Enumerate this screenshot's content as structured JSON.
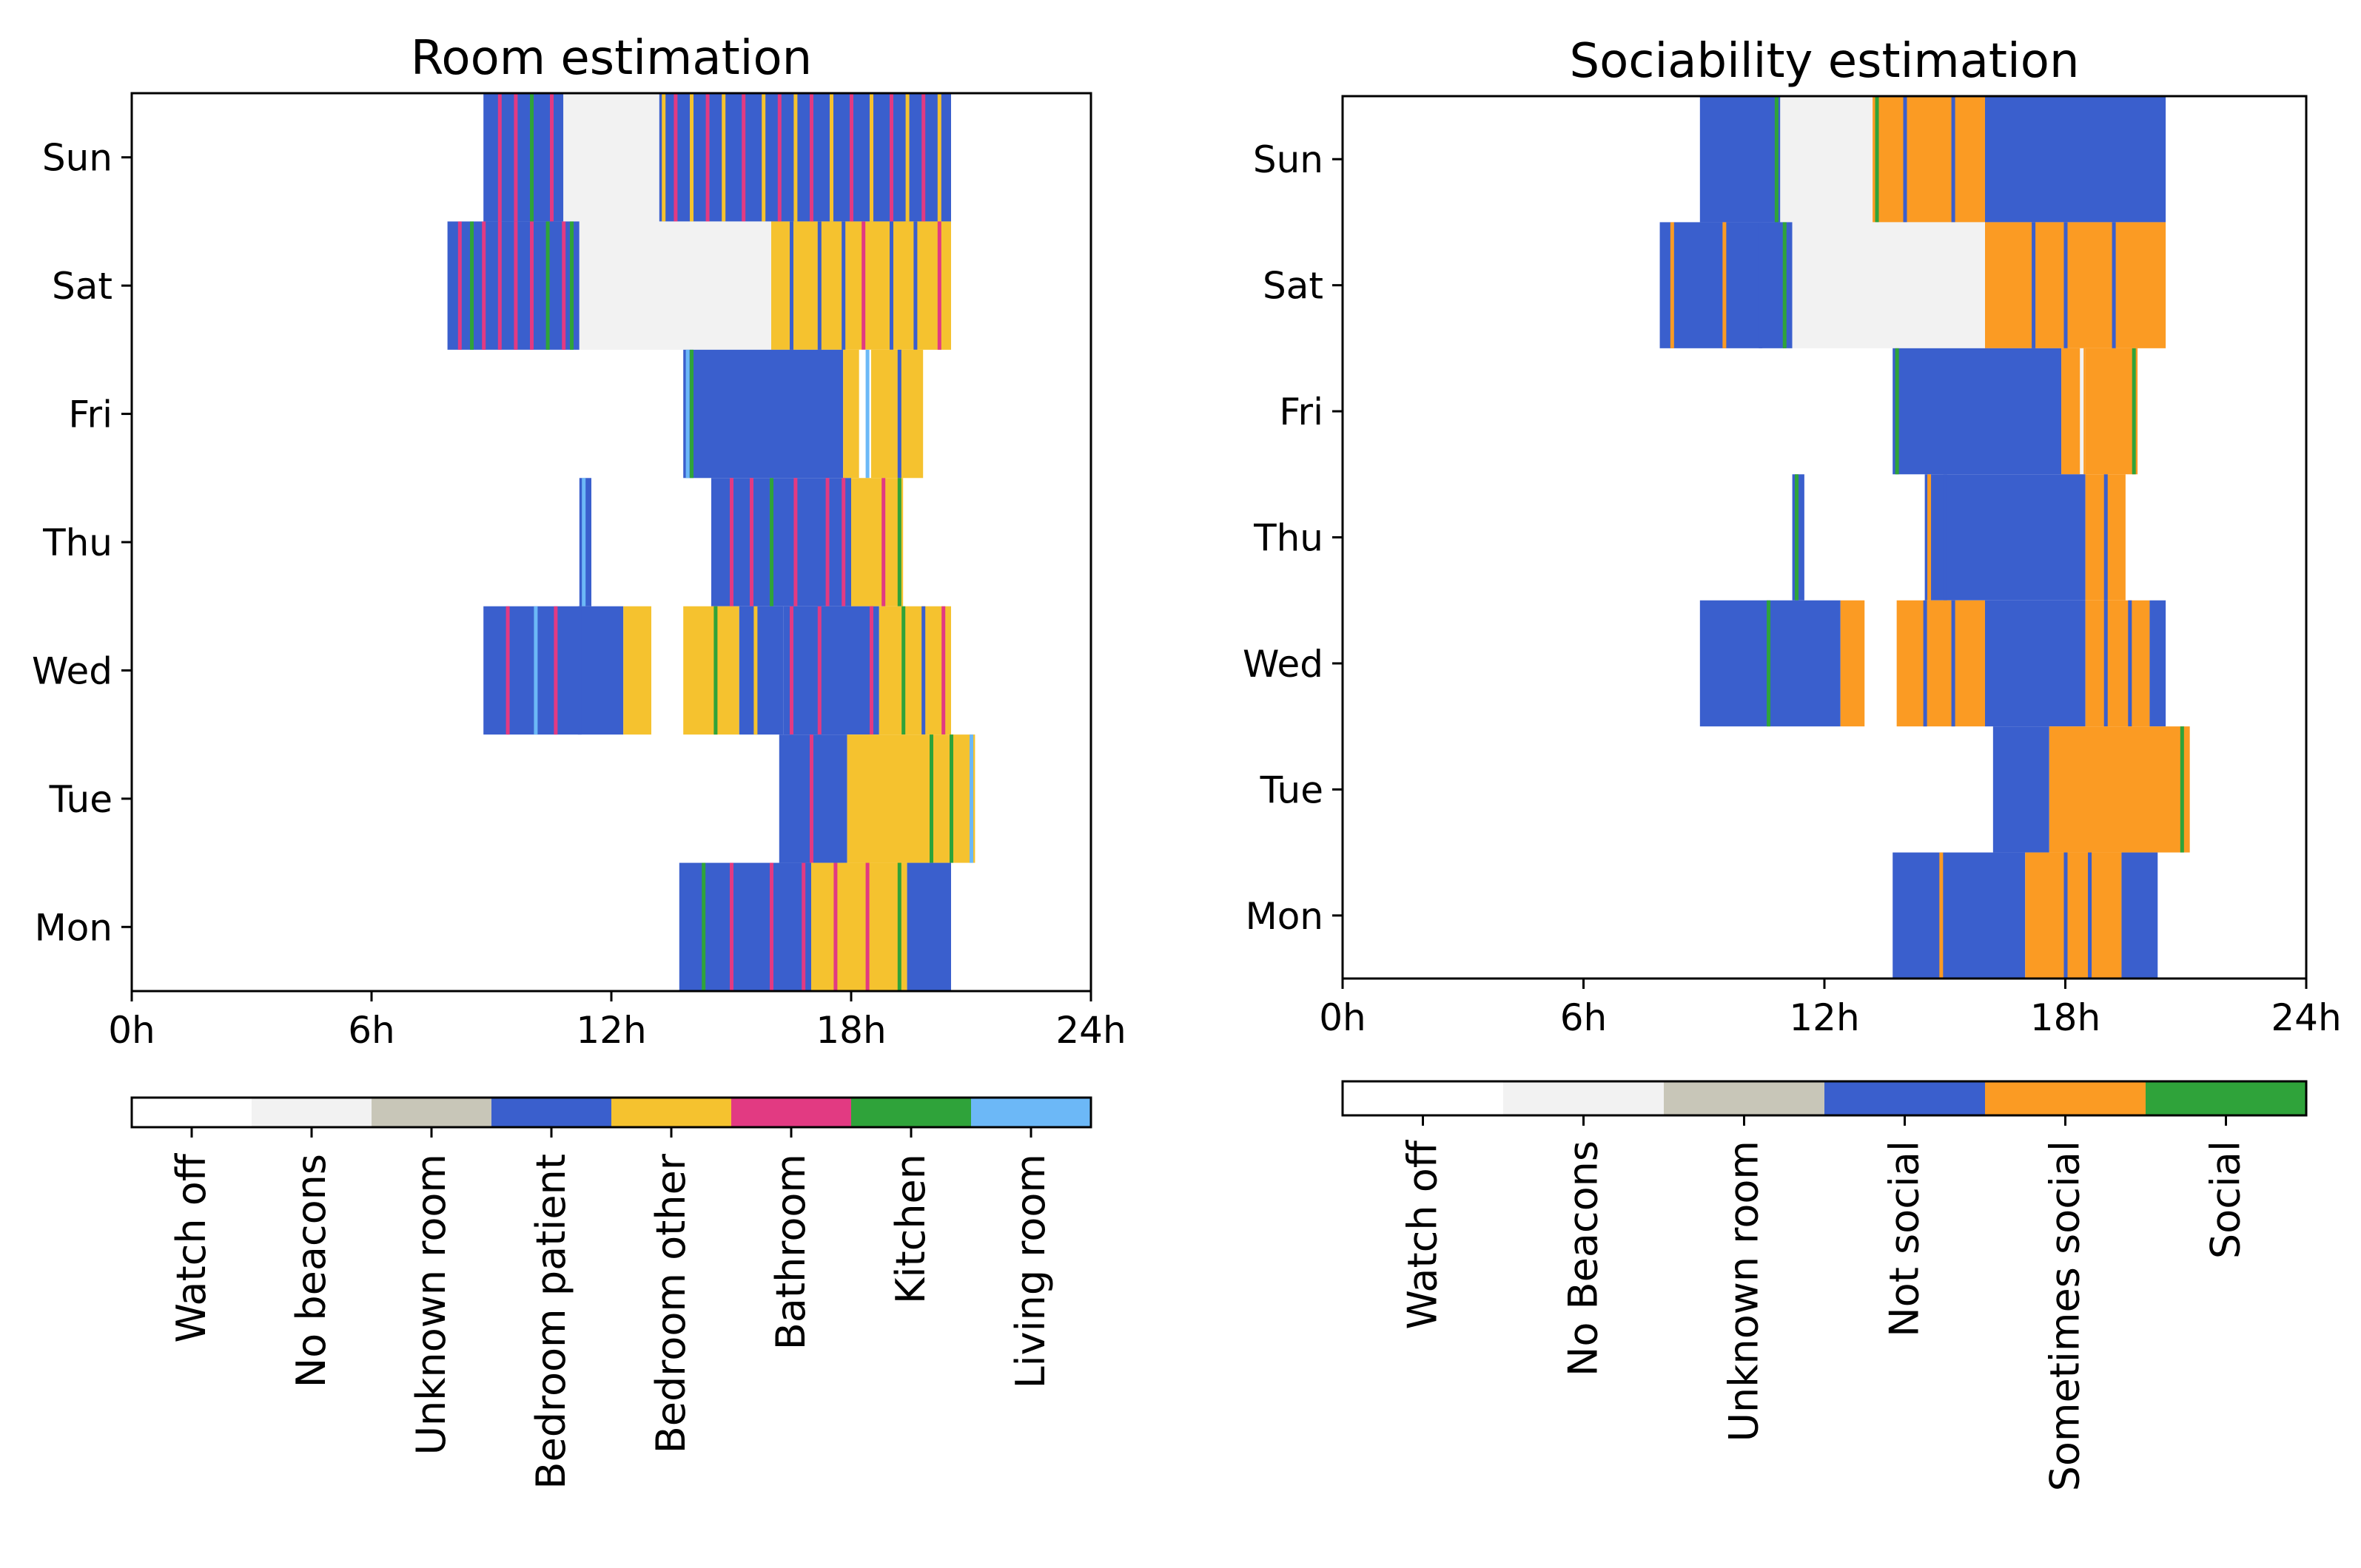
{
  "chart_data": [
    {
      "type": "heatmap",
      "title": "Room estimation",
      "xlabel": "",
      "ylabel": "",
      "xlim": [
        0,
        24
      ],
      "x_ticks": [
        "0h",
        "6h",
        "12h",
        "18h",
        "24h"
      ],
      "x_tick_values": [
        0,
        6,
        12,
        18,
        24
      ],
      "days": [
        "Sun",
        "Sat",
        "Fri",
        "Thu",
        "Wed",
        "Tue",
        "Mon"
      ],
      "categories": [
        {
          "label": "Watch off",
          "color": "#ffffff"
        },
        {
          "label": "No beacons",
          "color": "#f2f2f2"
        },
        {
          "label": "Unknown room",
          "color": "#c8c6b8"
        },
        {
          "label": "Bedroom patient",
          "color": "#3a5fcd"
        },
        {
          "label": "Bedroom other",
          "color": "#f5c22f"
        },
        {
          "label": "Bathroom",
          "color": "#e23a82"
        },
        {
          "label": "Kitchen",
          "color": "#2fa33a"
        },
        {
          "label": "Living room",
          "color": "#6cb8f7"
        }
      ],
      "series": [
        {
          "day": "Sun",
          "segments": [
            [
              8.8,
              10.8,
              3
            ],
            [
              10.8,
              13.2,
              1
            ],
            [
              13.2,
              20.5,
              3
            ]
          ],
          "accents": [
            [
              9.2,
              5
            ],
            [
              9.6,
              5
            ],
            [
              10.0,
              6
            ],
            [
              10.5,
              5
            ],
            [
              13.3,
              4
            ],
            [
              13.6,
              5
            ],
            [
              14.0,
              4
            ],
            [
              14.4,
              5
            ],
            [
              14.8,
              4
            ],
            [
              15.3,
              5
            ],
            [
              15.8,
              4
            ],
            [
              16.2,
              5
            ],
            [
              16.6,
              4
            ],
            [
              17.0,
              5
            ],
            [
              17.5,
              4
            ],
            [
              18.0,
              5
            ],
            [
              18.5,
              4
            ],
            [
              19.0,
              5
            ],
            [
              19.4,
              4
            ],
            [
              19.8,
              5
            ],
            [
              20.2,
              4
            ]
          ]
        },
        {
          "day": "Sat",
          "segments": [
            [
              7.9,
              11.2,
              3
            ],
            [
              11.2,
              16.0,
              1
            ],
            [
              16.0,
              20.5,
              4
            ]
          ],
          "accents": [
            [
              8.2,
              5
            ],
            [
              8.5,
              6
            ],
            [
              8.8,
              5
            ],
            [
              9.2,
              5
            ],
            [
              9.6,
              5
            ],
            [
              10.0,
              5
            ],
            [
              10.4,
              6
            ],
            [
              10.8,
              5
            ],
            [
              11.0,
              6
            ],
            [
              16.5,
              3
            ],
            [
              17.2,
              3
            ],
            [
              17.8,
              3
            ],
            [
              18.3,
              5
            ],
            [
              19.0,
              3
            ],
            [
              19.6,
              3
            ],
            [
              20.2,
              5
            ]
          ]
        },
        {
          "day": "Fri",
          "segments": [
            [
              13.8,
              17.8,
              3
            ],
            [
              17.8,
              18.2,
              4
            ],
            [
              18.2,
              18.5,
              0
            ],
            [
              18.5,
              19.8,
              4
            ]
          ],
          "accents": [
            [
              13.9,
              7
            ],
            [
              14.0,
              6
            ],
            [
              18.4,
              7
            ],
            [
              19.2,
              3
            ]
          ]
        },
        {
          "day": "Thu",
          "segments": [
            [
              11.2,
              11.5,
              3
            ],
            [
              14.5,
              18.0,
              3
            ],
            [
              18.0,
              19.3,
              4
            ]
          ],
          "accents": [
            [
              11.3,
              7
            ],
            [
              15.0,
              5
            ],
            [
              15.5,
              5
            ],
            [
              16.0,
              6
            ],
            [
              16.6,
              5
            ],
            [
              17.4,
              5
            ],
            [
              17.8,
              5
            ],
            [
              18.8,
              5
            ],
            [
              19.2,
              6
            ]
          ]
        },
        {
          "day": "Wed",
          "segments": [
            [
              8.8,
              12.3,
              3
            ],
            [
              12.3,
              13.0,
              4
            ],
            [
              13.8,
              15.2,
              4
            ],
            [
              15.2,
              16.3,
              3
            ],
            [
              16.3,
              18.7,
              3
            ],
            [
              18.7,
              20.5,
              4
            ]
          ],
          "accents": [
            [
              9.4,
              5
            ],
            [
              10.1,
              7
            ],
            [
              10.6,
              5
            ],
            [
              11.2,
              3
            ],
            [
              14.6,
              6
            ],
            [
              15.6,
              4
            ],
            [
              16.5,
              5
            ],
            [
              17.2,
              5
            ],
            [
              18.5,
              5
            ],
            [
              19.3,
              6
            ],
            [
              19.8,
              3
            ],
            [
              20.3,
              5
            ]
          ]
        },
        {
          "day": "Tue",
          "segments": [
            [
              16.2,
              17.9,
              3
            ],
            [
              17.9,
              21.1,
              4
            ]
          ],
          "accents": [
            [
              17.0,
              5
            ],
            [
              20.0,
              6
            ],
            [
              20.5,
              6
            ],
            [
              21.0,
              7
            ]
          ]
        },
        {
          "day": "Mon",
          "segments": [
            [
              13.7,
              17.0,
              3
            ],
            [
              17.0,
              19.4,
              4
            ],
            [
              19.4,
              20.5,
              3
            ]
          ],
          "accents": [
            [
              14.3,
              6
            ],
            [
              15.0,
              5
            ],
            [
              16.0,
              5
            ],
            [
              16.8,
              5
            ],
            [
              17.6,
              5
            ],
            [
              18.4,
              5
            ],
            [
              19.2,
              6
            ]
          ]
        }
      ]
    },
    {
      "type": "heatmap",
      "title": "Sociability estimation",
      "xlabel": "",
      "ylabel": "",
      "xlim": [
        0,
        24
      ],
      "x_ticks": [
        "0h",
        "6h",
        "12h",
        "18h",
        "24h"
      ],
      "x_tick_values": [
        0,
        6,
        12,
        18,
        24
      ],
      "days": [
        "Sun",
        "Sat",
        "Fri",
        "Thu",
        "Wed",
        "Tue",
        "Mon"
      ],
      "categories": [
        {
          "label": "Watch off",
          "color": "#ffffff"
        },
        {
          "label": "No Beacons",
          "color": "#f2f2f2"
        },
        {
          "label": "Unknown room",
          "color": "#c8c6b8"
        },
        {
          "label": "Not social",
          "color": "#3a5fcd"
        },
        {
          "label": "Sometimes social",
          "color": "#fb9b23"
        },
        {
          "label": "Social",
          "color": "#2fa33a"
        }
      ],
      "series": [
        {
          "day": "Sun",
          "segments": [
            [
              8.9,
              10.9,
              3
            ],
            [
              10.9,
              13.2,
              1
            ],
            [
              13.2,
              16.0,
              4
            ],
            [
              16.0,
              20.5,
              3
            ]
          ],
          "accents": [
            [
              10.8,
              5
            ],
            [
              13.3,
              5
            ],
            [
              14.0,
              3
            ],
            [
              15.2,
              3
            ]
          ]
        },
        {
          "day": "Sat",
          "segments": [
            [
              7.9,
              11.2,
              3
            ],
            [
              11.2,
              16.0,
              1
            ],
            [
              16.0,
              20.5,
              4
            ]
          ],
          "accents": [
            [
              8.2,
              4
            ],
            [
              9.5,
              4
            ],
            [
              10.4,
              3
            ],
            [
              11.0,
              5
            ],
            [
              17.2,
              3
            ],
            [
              18.0,
              3
            ],
            [
              19.2,
              3
            ]
          ]
        },
        {
          "day": "Fri",
          "segments": [
            [
              13.7,
              17.9,
              3
            ],
            [
              17.9,
              18.5,
              4
            ],
            [
              18.5,
              19.8,
              4
            ]
          ],
          "accents": [
            [
              13.8,
              5
            ],
            [
              18.4,
              1
            ],
            [
              19.7,
              5
            ]
          ]
        },
        {
          "day": "Thu",
          "segments": [
            [
              11.2,
              11.5,
              3
            ],
            [
              14.5,
              18.5,
              3
            ],
            [
              18.5,
              19.5,
              4
            ]
          ],
          "accents": [
            [
              11.3,
              5
            ],
            [
              14.6,
              4
            ],
            [
              15.0,
              3
            ],
            [
              19.0,
              3
            ]
          ]
        },
        {
          "day": "Wed",
          "segments": [
            [
              8.9,
              12.4,
              3
            ],
            [
              12.4,
              13.0,
              4
            ],
            [
              13.8,
              16.0,
              4
            ],
            [
              16.0,
              18.5,
              3
            ],
            [
              18.5,
              20.1,
              4
            ],
            [
              20.1,
              20.5,
              3
            ]
          ],
          "accents": [
            [
              10.6,
              5
            ],
            [
              14.5,
              3
            ],
            [
              15.2,
              3
            ],
            [
              19.0,
              3
            ],
            [
              19.6,
              3
            ]
          ]
        },
        {
          "day": "Tue",
          "segments": [
            [
              16.2,
              17.6,
              3
            ],
            [
              17.6,
              21.1,
              4
            ]
          ],
          "accents": [
            [
              20.9,
              5
            ]
          ]
        },
        {
          "day": "Mon",
          "segments": [
            [
              13.7,
              17.0,
              3
            ],
            [
              17.0,
              19.4,
              4
            ],
            [
              19.4,
              20.3,
              3
            ]
          ],
          "accents": [
            [
              14.9,
              4
            ],
            [
              18.0,
              3
            ],
            [
              18.6,
              3
            ]
          ]
        }
      ]
    }
  ]
}
